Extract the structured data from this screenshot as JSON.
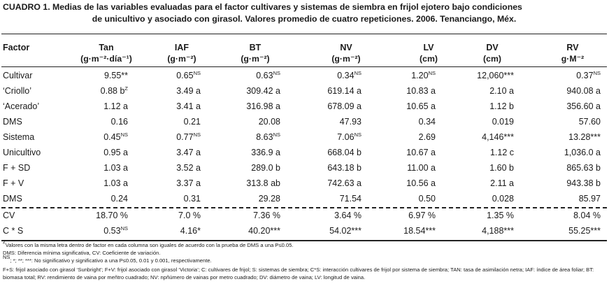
{
  "caption": {
    "line1": "CUADRO 1. Medias de las variables evaluadas para el factor cultivares y sistemas de siembra en frijol ejotero bajo condiciones",
    "line2": "de unicultivo y asociado con girasol. Valores promedio de cuatro repeticiones. 2006. Tenanciango, Méx."
  },
  "headers": {
    "factor": "Factor",
    "tan": {
      "name": "Tan",
      "unit": "(g·m⁻²·día⁻¹)"
    },
    "iaf": {
      "name": "IAF",
      "unit": "(g·m⁻²)"
    },
    "bt": {
      "name": "BT",
      "unit": "(g·m⁻²)"
    },
    "nv": {
      "name": "NV",
      "unit": "(g·m⁻²)"
    },
    "lv": {
      "name": "LV",
      "unit": "(cm)"
    },
    "dv": {
      "name": "DV",
      "unit": "(cm)"
    },
    "rv": {
      "name": "RV",
      "unit": "g·M⁻²"
    }
  },
  "rows": [
    {
      "factor": "Cultivar",
      "tan": {
        "v": "9.55**",
        "s": ""
      },
      "iaf": {
        "v": "0.65",
        "s": "NS"
      },
      "bt": {
        "v": "0.63",
        "s": "NS"
      },
      "nv": {
        "v": "0.34",
        "s": "NS"
      },
      "lv": {
        "v": "1.20",
        "s": "NS"
      },
      "dv": {
        "v": "12,060***",
        "s": ""
      },
      "rv": {
        "v": "0.37",
        "s": "NS"
      }
    },
    {
      "factor": "‘Criollo’",
      "tan": {
        "v": "0.88 b",
        "s": "Z"
      },
      "iaf": {
        "v": "3.49 a",
        "s": ""
      },
      "bt": {
        "v": "309.42 a",
        "s": ""
      },
      "nv": {
        "v": "619.14 a",
        "s": ""
      },
      "lv": {
        "v": "10.83 a",
        "s": ""
      },
      "dv": {
        "v": "2.10 a",
        "s": ""
      },
      "rv": {
        "v": "940.08 a",
        "s": ""
      }
    },
    {
      "factor": "‘Acerado’",
      "tan": {
        "v": "1.12 a",
        "s": ""
      },
      "iaf": {
        "v": "3.41 a",
        "s": ""
      },
      "bt": {
        "v": "316.98 a",
        "s": ""
      },
      "nv": {
        "v": "678.09 a",
        "s": ""
      },
      "lv": {
        "v": "10.65 a",
        "s": ""
      },
      "dv": {
        "v": "1.12 b",
        "s": ""
      },
      "rv": {
        "v": "356.60 a",
        "s": ""
      }
    },
    {
      "factor": "DMS",
      "tan": {
        "v": "0.16",
        "s": ""
      },
      "iaf": {
        "v": "0.21",
        "s": ""
      },
      "bt": {
        "v": "20.08",
        "s": ""
      },
      "nv": {
        "v": "47.93",
        "s": ""
      },
      "lv": {
        "v": "0.34",
        "s": ""
      },
      "dv": {
        "v": "0.019",
        "s": ""
      },
      "rv": {
        "v": "57.60",
        "s": ""
      }
    },
    {
      "factor": "Sistema",
      "tan": {
        "v": "0.45",
        "s": "NS"
      },
      "iaf": {
        "v": "0.77",
        "s": "NS"
      },
      "bt": {
        "v": "8.63",
        "s": "NS"
      },
      "nv": {
        "v": "7.06",
        "s": "NS"
      },
      "lv": {
        "v": "2.69",
        "s": ""
      },
      "dv": {
        "v": "4,146***",
        "s": ""
      },
      "rv": {
        "v": "13.28***",
        "s": ""
      }
    },
    {
      "factor": "Unicultivo",
      "tan": {
        "v": "0.95 a",
        "s": ""
      },
      "iaf": {
        "v": "3.47 a",
        "s": ""
      },
      "bt": {
        "v": "336.9 a",
        "s": ""
      },
      "nv": {
        "v": "668.04 b",
        "s": ""
      },
      "lv": {
        "v": "10.67 a",
        "s": ""
      },
      "dv": {
        "v": "1.12 c",
        "s": ""
      },
      "rv": {
        "v": "1,036.0 a",
        "s": ""
      }
    },
    {
      "factor": "F + SD",
      "tan": {
        "v": "1.03 a",
        "s": ""
      },
      "iaf": {
        "v": "3.52 a",
        "s": ""
      },
      "bt": {
        "v": "289.0 b",
        "s": ""
      },
      "nv": {
        "v": "643.18 b",
        "s": ""
      },
      "lv": {
        "v": "11.00 a",
        "s": ""
      },
      "dv": {
        "v": "1.60 b",
        "s": ""
      },
      "rv": {
        "v": "865.63 b",
        "s": ""
      }
    },
    {
      "factor": "F + V",
      "tan": {
        "v": "1.03 a",
        "s": ""
      },
      "iaf": {
        "v": "3.37 a",
        "s": ""
      },
      "bt": {
        "v": "313.8 ab",
        "s": ""
      },
      "nv": {
        "v": "742.63 a",
        "s": ""
      },
      "lv": {
        "v": "10.56 a",
        "s": ""
      },
      "dv": {
        "v": "2.11 a",
        "s": ""
      },
      "rv": {
        "v": "943.38 b",
        "s": ""
      }
    },
    {
      "factor": "DMS",
      "tan": {
        "v": "0.24",
        "s": ""
      },
      "iaf": {
        "v": "0.31",
        "s": ""
      },
      "bt": {
        "v": "29.28",
        "s": ""
      },
      "nv": {
        "v": "71.54",
        "s": ""
      },
      "lv": {
        "v": "0.50",
        "s": ""
      },
      "dv": {
        "v": "0.028",
        "s": ""
      },
      "rv": {
        "v": "85.97",
        "s": ""
      }
    },
    {
      "factor": "CV",
      "tan": {
        "v": "18.70 %",
        "s": ""
      },
      "iaf": {
        "v": "7.0 %",
        "s": ""
      },
      "bt": {
        "v": "7.36 %",
        "s": ""
      },
      "nv": {
        "v": "3.64 %",
        "s": ""
      },
      "lv": {
        "v": "6.97 %",
        "s": ""
      },
      "dv": {
        "v": "1.35 %",
        "s": ""
      },
      "rv": {
        "v": "8.04 %",
        "s": ""
      }
    },
    {
      "factor": "C * S",
      "tan": {
        "v": "0.53",
        "s": "NS"
      },
      "iaf": {
        "v": "4.16*",
        "s": ""
      },
      "bt": {
        "v": "40.20***",
        "s": ""
      },
      "nv": {
        "v": "54.02***",
        "s": ""
      },
      "lv": {
        "v": "18.54***",
        "s": ""
      },
      "dv": {
        "v": "4,188***",
        "s": ""
      },
      "rv": {
        "v": "55.25***",
        "s": ""
      }
    }
  ],
  "footnotes": {
    "z_mark": "z",
    "z_text": "Valores con la misma letra dentro de factor en cada columna son iguales de acuerdo con la prueba de DMS a una P≤0.05.",
    "dms_text": "DMS: Diferencia mínima significativa, CV: Coeficiente de variación.",
    "ns_mark": "NS",
    "ns_text": "; *; **; ***: No significativo y significativo a una P≤0.05, 0.01 y 0.001, respectivamente.",
    "abbrev_text": "F+S: frijol asociado con girasol ‘Sunbright’; F+V: frijol asociado con girasol ‘Victoria’; C: cultivares de frijol; S: sistemas de siembra; C*S: interacción cultivares de frijol por sistema de siembra; TAN: tasa de asimilación netra; IAF: índice de área foliar; BT: biomasa total; RV: rendimiento de vaina por meñtro cuadrado; NV: npñúmero de vainas por metro cuadrado; DV: diámetro de vaina; LV: longitud de vaina."
  }
}
